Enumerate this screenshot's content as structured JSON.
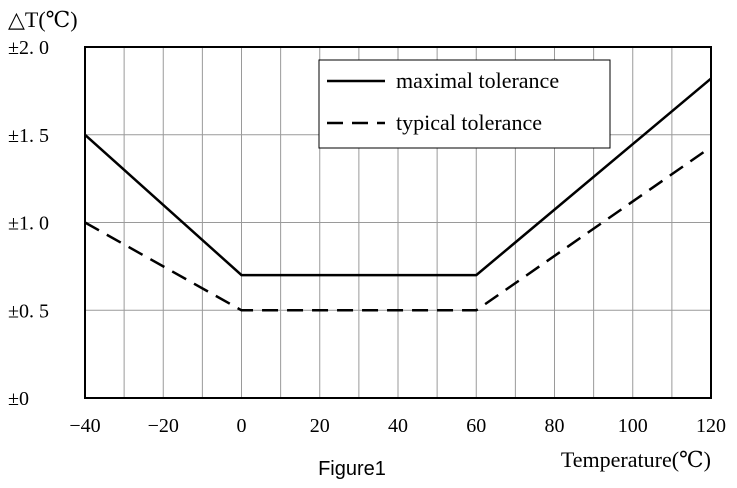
{
  "chart_data": {
    "type": "line",
    "title": "",
    "ylabel": "△T(℃)",
    "xlabel": "Temperature(℃)",
    "caption": "Figure1",
    "xlim": [
      -40,
      120
    ],
    "ylim": [
      0,
      2.0
    ],
    "x_ticks": [
      -40,
      -20,
      0,
      20,
      40,
      60,
      80,
      100,
      120
    ],
    "x_tick_labels": [
      "−40",
      "−20",
      "0",
      "20",
      "40",
      "60",
      "80",
      "100",
      "120"
    ],
    "y_ticks": [
      0,
      0.5,
      1.0,
      1.5,
      2.0
    ],
    "y_tick_labels": [
      "±0",
      "±0. 5",
      "±1. 0",
      "±1. 5",
      "±2. 0"
    ],
    "x_grid_step": 10,
    "grid": true,
    "legend_position": "top-right",
    "series": [
      {
        "name": "maximal tolerance",
        "style": "solid",
        "color": "#000000",
        "x": [
          -40,
          0,
          60,
          120
        ],
        "y": [
          1.5,
          0.7,
          0.7,
          1.82
        ]
      },
      {
        "name": "typical tolerance",
        "style": "dashed",
        "color": "#000000",
        "x": [
          -40,
          0,
          60,
          120
        ],
        "y": [
          1.0,
          0.5,
          0.5,
          1.43
        ]
      }
    ]
  }
}
